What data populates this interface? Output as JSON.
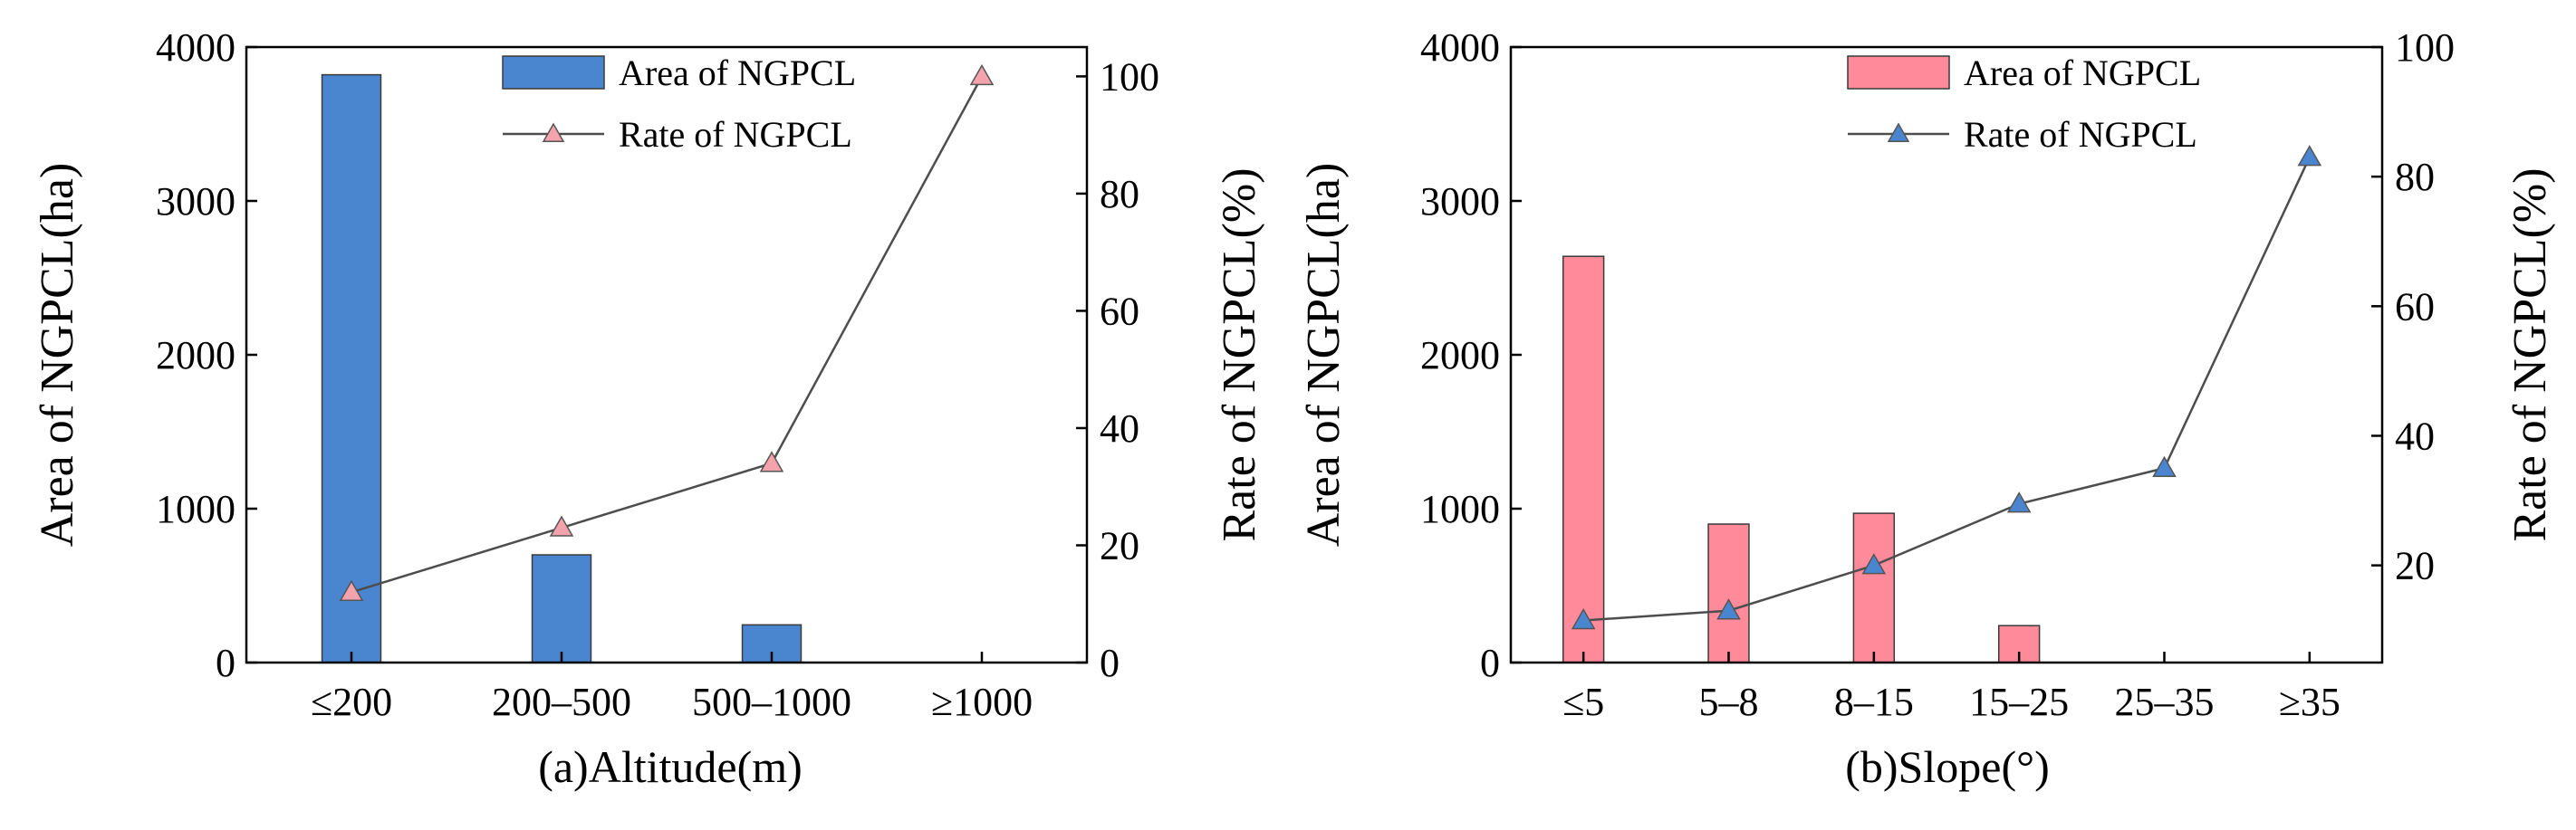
{
  "chart_data": [
    {
      "type": "bar",
      "xlabel": "(a)Altitude(m)",
      "ylabel": "Area of NGPCL(ha)",
      "y2label": "Rate of NGPCL(%)",
      "categories": [
        "≤200",
        "200–500",
        "500–1000",
        "≥1000"
      ],
      "ylim": [
        0,
        4000
      ],
      "yticks": [
        0,
        1000,
        2000,
        3000,
        4000
      ],
      "y2lim": [
        0,
        105
      ],
      "y2ticks": [
        0,
        20,
        40,
        60,
        80,
        100
      ],
      "legend_position": "top-right",
      "series": [
        {
          "name": "Area of NGPCL",
          "type": "bar",
          "axis": "left",
          "color": "#4a86cf",
          "values": [
            3820,
            700,
            245,
            0
          ]
        },
        {
          "name": "Rate of NGPCL",
          "type": "line",
          "axis": "right",
          "color": "#4d4d4d",
          "marker": "triangle",
          "marker_color": "#f4a3ad",
          "values": [
            12,
            23,
            34,
            100
          ]
        }
      ]
    },
    {
      "type": "bar",
      "xlabel": "(b)Slope(°)",
      "ylabel": "Area of NGPCL(ha)",
      "y2label": "Rate of NGPCL(%)",
      "categories": [
        "≤5",
        "5–8",
        "8–15",
        "15–25",
        "25–35",
        "≥35"
      ],
      "ylim": [
        0,
        4000
      ],
      "yticks": [
        0,
        1000,
        2000,
        3000,
        4000
      ],
      "y2lim": [
        5,
        100
      ],
      "y2ticks": [
        20,
        40,
        60,
        80,
        100
      ],
      "legend_position": "top-right",
      "series": [
        {
          "name": "Area of NGPCL",
          "type": "bar",
          "axis": "left",
          "color": "#ff8a99",
          "values": [
            2640,
            900,
            970,
            240,
            0,
            0
          ]
        },
        {
          "name": "Rate of NGPCL",
          "type": "line",
          "axis": "right",
          "color": "#4d4d4d",
          "marker": "triangle",
          "marker_color": "#4a86cf",
          "values": [
            11.5,
            13,
            20,
            29.5,
            35,
            83
          ]
        }
      ]
    }
  ]
}
